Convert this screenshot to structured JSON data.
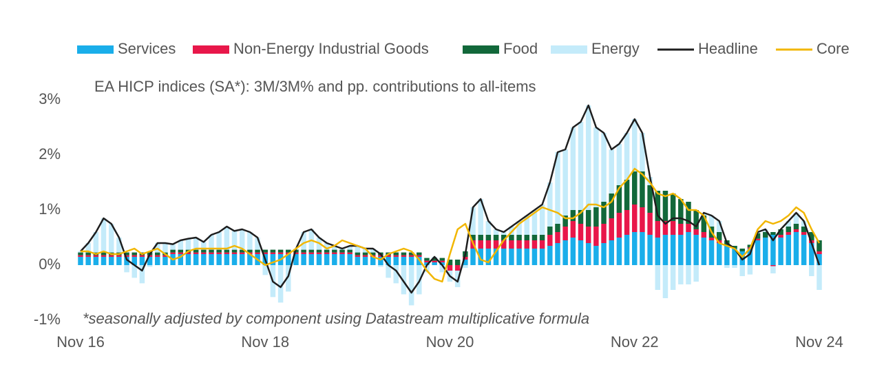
{
  "chart_data": {
    "type": "stacked-bar-line",
    "subtitle": "EA HICP indices (SA*): 3M/3M% and pp. contributions to all-items",
    "annotation": "*seasonally adjusted by component using Datastream multiplicative formula",
    "categories": [
      "Nov 16",
      null,
      null,
      null,
      null,
      null,
      null,
      null,
      null,
      null,
      null,
      null,
      null,
      null,
      null,
      null,
      null,
      null,
      null,
      null,
      null,
      null,
      null,
      null,
      "Nov 18",
      null,
      null,
      null,
      null,
      null,
      null,
      null,
      null,
      null,
      null,
      null,
      null,
      null,
      null,
      null,
      null,
      null,
      null,
      null,
      null,
      null,
      null,
      null,
      "Nov 20",
      null,
      null,
      null,
      null,
      null,
      null,
      null,
      null,
      null,
      null,
      null,
      null,
      null,
      null,
      null,
      null,
      null,
      null,
      null,
      null,
      null,
      null,
      null,
      "Nov 22",
      null,
      null,
      null,
      null,
      null,
      null,
      null,
      null,
      null,
      null,
      null,
      null,
      null,
      null,
      null,
      null,
      null,
      null,
      null,
      null,
      null,
      null,
      null,
      "Nov 24"
    ],
    "ylim": [
      -1,
      3
    ],
    "yticks": [
      {
        "value": -1,
        "label": "-1%"
      },
      {
        "value": 0,
        "label": "0%"
      },
      {
        "value": 1,
        "label": "1%"
      },
      {
        "value": 2,
        "label": "2%"
      },
      {
        "value": 3,
        "label": "3%"
      }
    ],
    "series": [
      {
        "name": "Services",
        "kind": "bar",
        "color": "#1aaeea",
        "values": [
          0.15,
          0.15,
          0.15,
          0.15,
          0.15,
          0.15,
          0.15,
          0.15,
          0.15,
          0.15,
          0.15,
          0.15,
          0.2,
          0.2,
          0.2,
          0.2,
          0.2,
          0.2,
          0.2,
          0.2,
          0.2,
          0.2,
          0.2,
          0.2,
          0.2,
          0.2,
          0.2,
          0.2,
          0.2,
          0.2,
          0.2,
          0.2,
          0.2,
          0.2,
          0.2,
          0.2,
          0.15,
          0.15,
          0.15,
          0.15,
          0.15,
          0.15,
          0.15,
          0.15,
          0.15,
          0.05,
          0.05,
          0.05,
          0,
          0,
          0.1,
          0.3,
          0.3,
          0.3,
          0.3,
          0.3,
          0.3,
          0.3,
          0.3,
          0.3,
          0.3,
          0.35,
          0.4,
          0.45,
          0.5,
          0.45,
          0.4,
          0.35,
          0.4,
          0.45,
          0.5,
          0.55,
          0.6,
          0.6,
          0.55,
          0.5,
          0.55,
          0.55,
          0.55,
          0.6,
          0.55,
          0.5,
          0.45,
          0.4,
          0.35,
          0.3,
          0.25,
          0.3,
          0.45,
          0.5,
          0.55,
          0.5,
          0.55,
          0.6,
          0.55,
          0.4,
          0.2
        ]
      },
      {
        "name": "Non-Energy Industrial Goods",
        "kind": "bar",
        "color": "#e8174a",
        "values": [
          0.03,
          0.03,
          0.03,
          0.03,
          0.03,
          0.03,
          0.03,
          0.03,
          0.03,
          0.03,
          0.03,
          0.03,
          0.03,
          0.03,
          0.03,
          0.03,
          0.03,
          0.03,
          0.03,
          0.03,
          0.03,
          0.03,
          0.03,
          0.03,
          0.03,
          0.03,
          0.03,
          0.03,
          0.03,
          0.03,
          0.03,
          0.03,
          0.03,
          0.03,
          0.03,
          0.03,
          0.03,
          0.03,
          0.03,
          0.03,
          0.03,
          0.03,
          0.03,
          0.03,
          0.03,
          0.03,
          0.03,
          0.03,
          -0.1,
          -0.1,
          0.05,
          0.15,
          0.15,
          0.15,
          0.15,
          0.15,
          0.15,
          0.15,
          0.15,
          0.15,
          0.15,
          0.2,
          0.2,
          0.25,
          0.3,
          0.3,
          0.3,
          0.35,
          0.35,
          0.4,
          0.45,
          0.45,
          0.5,
          0.45,
          0.4,
          0.3,
          0.25,
          0.25,
          0.2,
          0.15,
          0.1,
          0.1,
          0.05,
          0.05,
          0,
          0,
          0,
          0.02,
          0.03,
          0,
          -0.02,
          0.05,
          0.05,
          0.05,
          0.05,
          0.05,
          0.05
        ]
      },
      {
        "name": "Food",
        "kind": "bar",
        "color": "#12683a",
        "values": [
          0.05,
          0.05,
          0.05,
          0.05,
          0.05,
          0.05,
          0.05,
          0.05,
          0.05,
          0.05,
          0.05,
          0.05,
          0.05,
          0.05,
          0.05,
          0.05,
          0.05,
          0.05,
          0.05,
          0.05,
          0.05,
          0.05,
          0.05,
          0.05,
          0.05,
          0.05,
          0.05,
          0.05,
          0.05,
          0.05,
          0.05,
          0.05,
          0.05,
          0.05,
          0.05,
          0.05,
          0.05,
          0.05,
          0.05,
          0.05,
          0.05,
          0.05,
          0.05,
          0.05,
          0.05,
          0.05,
          0.05,
          0.05,
          0.1,
          0.1,
          0.1,
          0.1,
          0.1,
          0.1,
          0.1,
          0.1,
          0.1,
          0.1,
          0.1,
          0.1,
          0.1,
          0.15,
          0.15,
          0.2,
          0.2,
          0.25,
          0.3,
          0.35,
          0.4,
          0.45,
          0.5,
          0.55,
          0.6,
          0.65,
          0.5,
          0.55,
          0.55,
          0.5,
          0.45,
          0.4,
          0.35,
          0.3,
          0.2,
          0.15,
          0.1,
          0.05,
          0.05,
          0.05,
          0.1,
          0.1,
          0.05,
          0.1,
          0.1,
          0.1,
          0.1,
          0.15,
          0.2
        ]
      },
      {
        "name": "Energy",
        "kind": "bar",
        "color": "#c4ebfa",
        "values": [
          0.02,
          0.17,
          0.37,
          0.62,
          0.52,
          0.27,
          -0.13,
          -0.23,
          -0.33,
          -0.03,
          0.17,
          0.17,
          0.1,
          0.17,
          0.2,
          0.22,
          0.14,
          0.27,
          0.32,
          0.42,
          0.34,
          0.37,
          0.32,
          0.22,
          -0.18,
          -0.58,
          -0.68,
          -0.48,
          0.02,
          0.32,
          0.37,
          0.22,
          0.12,
          0.07,
          0.02,
          0.07,
          0.12,
          0.07,
          0.07,
          -0.03,
          -0.23,
          -0.33,
          -0.53,
          -0.73,
          -0.53,
          -0.13,
          0.02,
          -0.13,
          -0.2,
          -0.3,
          -0.05,
          0.5,
          0.65,
          0.25,
          0.1,
          0.05,
          0.15,
          0.25,
          0.35,
          0.45,
          0.55,
          0.8,
          1.3,
          1.2,
          1.5,
          1.6,
          1.9,
          1.45,
          1.25,
          0.8,
          0.75,
          0.85,
          0.95,
          0.7,
          0.15,
          -0.45,
          -0.6,
          -0.45,
          -0.35,
          -0.35,
          -0.3,
          0.05,
          0.2,
          0.2,
          -0.05,
          -0.05,
          -0.2,
          -0.17,
          0.02,
          0.05,
          -0.13,
          0,
          0.1,
          0.2,
          0.1,
          -0.2,
          -0.45
        ]
      },
      {
        "name": "Headline",
        "kind": "line",
        "color": "#1e1e1e",
        "values": [
          0.25,
          0.4,
          0.6,
          0.85,
          0.75,
          0.5,
          0.1,
          0,
          -0.1,
          0.2,
          0.4,
          0.4,
          0.38,
          0.45,
          0.48,
          0.5,
          0.42,
          0.55,
          0.6,
          0.7,
          0.62,
          0.65,
          0.6,
          0.5,
          0.1,
          -0.3,
          -0.4,
          -0.2,
          0.3,
          0.6,
          0.65,
          0.5,
          0.4,
          0.35,
          0.3,
          0.35,
          0.35,
          0.3,
          0.3,
          0.2,
          0,
          -0.1,
          -0.3,
          -0.5,
          -0.3,
          0,
          0.15,
          0,
          -0.2,
          -0.3,
          0.2,
          1.05,
          1.2,
          0.8,
          0.65,
          0.6,
          0.7,
          0.8,
          0.9,
          1,
          1.1,
          1.5,
          2.05,
          2.1,
          2.5,
          2.6,
          2.9,
          2.5,
          2.4,
          2.1,
          2.2,
          2.4,
          2.65,
          2.4,
          1.6,
          0.9,
          0.75,
          0.85,
          0.85,
          0.8,
          0.7,
          0.95,
          0.9,
          0.8,
          0.4,
          0.3,
          0.1,
          0.2,
          0.6,
          0.65,
          0.45,
          0.65,
          0.8,
          0.95,
          0.8,
          0.4,
          0
        ]
      },
      {
        "name": "Core",
        "kind": "line",
        "color": "#f2b600",
        "values": [
          0.25,
          0.25,
          0.2,
          0.25,
          0.2,
          0.2,
          0.25,
          0.3,
          0.2,
          0.25,
          0.3,
          0.2,
          0.1,
          0.15,
          0.25,
          0.3,
          0.3,
          0.3,
          0.3,
          0.3,
          0.35,
          0.3,
          0.2,
          0.1,
          0,
          0.05,
          0.1,
          0.2,
          0.3,
          0.4,
          0.45,
          0.4,
          0.3,
          0.35,
          0.45,
          0.4,
          0.35,
          0.3,
          0.15,
          0.1,
          0.2,
          0.25,
          0.3,
          0.25,
          0.1,
          -0.1,
          -0.25,
          -0.3,
          0.2,
          0.65,
          0.75,
          0.4,
          0.1,
          0.05,
          0.25,
          0.45,
          0.6,
          0.75,
          0.85,
          0.95,
          1.05,
          1,
          0.95,
          0.85,
          0.85,
          0.95,
          1.1,
          1.1,
          1.05,
          1.15,
          1.4,
          1.55,
          1.75,
          1.65,
          1.5,
          1.3,
          1.25,
          1.3,
          1.2,
          1,
          1,
          0.9,
          0.6,
          0.4,
          0.35,
          0.3,
          0.15,
          0.3,
          0.65,
          0.8,
          0.75,
          0.8,
          0.9,
          1.05,
          0.95,
          0.65,
          0.4
        ]
      }
    ]
  }
}
